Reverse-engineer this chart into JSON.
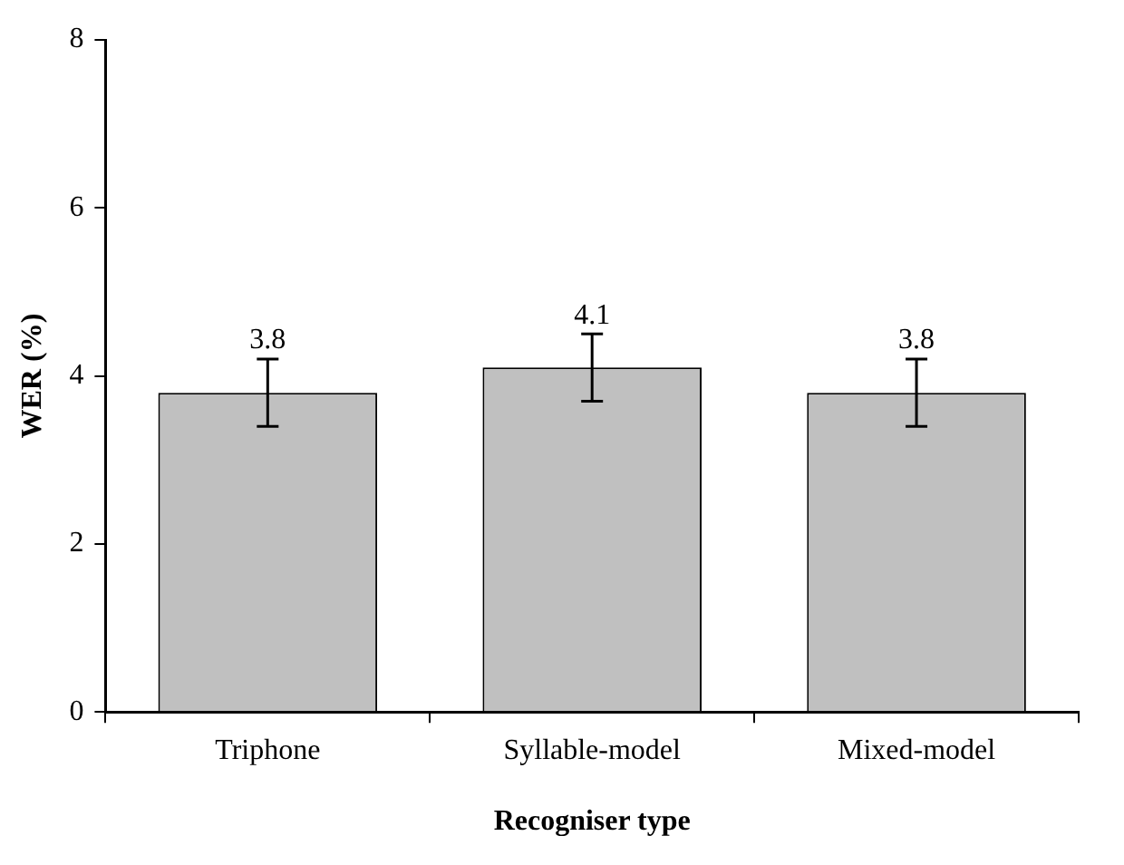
{
  "chart_data": {
    "type": "bar",
    "xlabel": "Recogniser type",
    "ylabel": "WER (%)",
    "categories": [
      "Triphone",
      "Syllable-model",
      "Mixed-model"
    ],
    "values": [
      3.8,
      4.1,
      3.8
    ],
    "color": "#c0c0c0",
    "errors": [
      0.4,
      0.4,
      0.4
    ],
    "ylim": [
      0,
      8
    ],
    "yticks": [
      0,
      2,
      4,
      6,
      8
    ],
    "grid": false,
    "legend": false,
    "data_labels": true
  }
}
